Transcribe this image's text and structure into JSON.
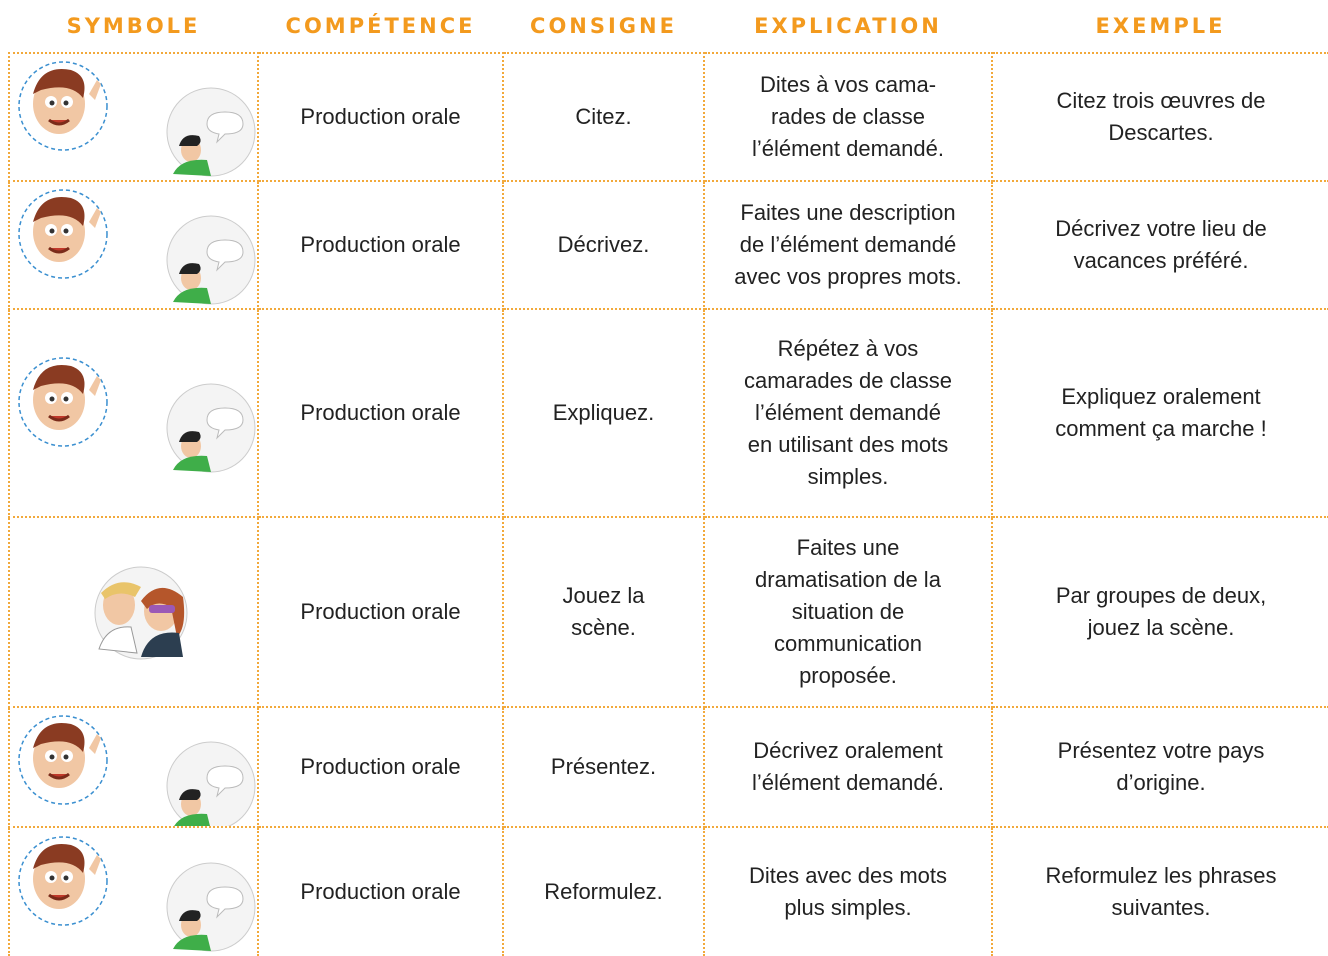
{
  "header": [
    "SYMBOLE",
    "COMPÉTENCE",
    "CONSIGNE",
    "EXPLICATION",
    "EXEMPLE"
  ],
  "rows": [
    {
      "competence": "Production orale",
      "consigne": [
        "Citez."
      ],
      "explication": [
        "Dites à vos cama-",
        "rades de classe",
        "l’élément demandé."
      ],
      "exemple": [
        "Citez trois œuvres de",
        "Descartes."
      ]
    },
    {
      "competence": "Production orale",
      "consigne": [
        "Décrivez."
      ],
      "explication": [
        "Faites une description",
        "de l’élément demandé",
        "avec vos propres mots."
      ],
      "exemple": [
        "Décrivez votre lieu de",
        "vacances préféré."
      ]
    },
    {
      "competence": "Production orale",
      "consigne": [
        "Expliquez."
      ],
      "explication": [
        "Répétez à vos",
        "camarades de classe",
        "l’élément demandé",
        "en utilisant des mots",
        "simples."
      ],
      "exemple": [
        "Expliquez oralement",
        "comment ça marche !"
      ]
    },
    {
      "competence": "Production orale",
      "consigne": [
        "Jouez la",
        "scène."
      ],
      "explication": [
        "Faites une",
        "dramatisation de la",
        "situation de",
        "communication",
        "proposée."
      ],
      "exemple": [
        "Par groupes de deux,",
        "jouez la scène."
      ]
    },
    {
      "competence": "Production orale",
      "consigne": [
        "Présentez."
      ],
      "explication": [
        "Décrivez oralement",
        "l’élément demandé."
      ],
      "exemple": [
        "Présentez votre pays",
        "d’origine."
      ]
    },
    {
      "competence": "Production orale",
      "consigne": [
        "Reformulez."
      ],
      "explication": [
        "Dites avec des mots",
        "plus simples."
      ],
      "exemple": [
        "Reformulez les phrases",
        "suivantes."
      ]
    }
  ]
}
